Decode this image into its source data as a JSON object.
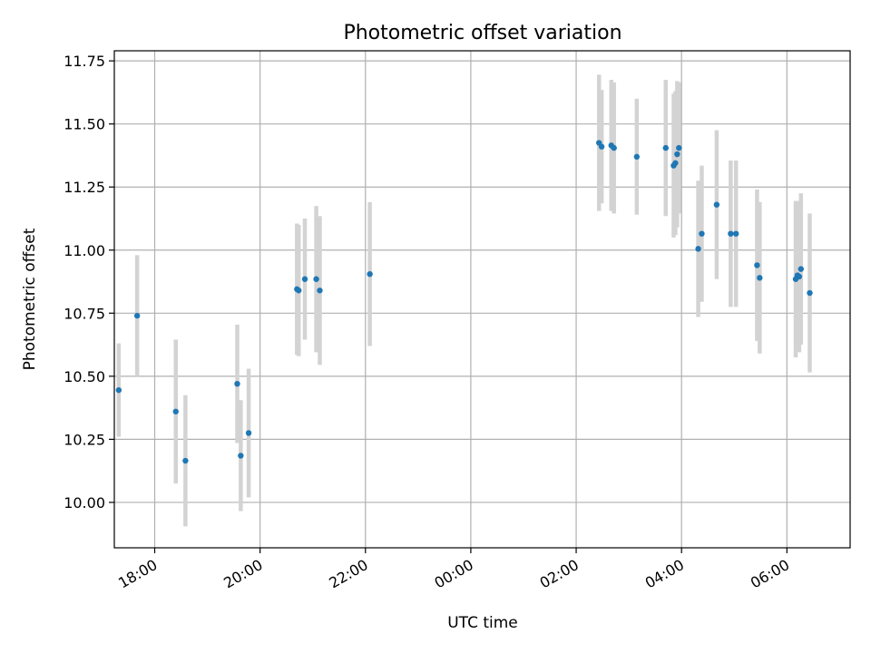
{
  "chart_data": {
    "type": "scatter",
    "title": "Photometric offset variation",
    "xlabel": "UTC time",
    "ylabel": "Photometric offset",
    "x_axis": "time-of-day, night spanning midnight",
    "xlim": [
      "17:14",
      "07:12"
    ],
    "ylim": [
      9.82,
      11.79
    ],
    "yticks": [
      10.0,
      10.25,
      10.5,
      10.75,
      11.0,
      11.25,
      11.5,
      11.75
    ],
    "xticks": [
      "18:00",
      "20:00",
      "22:00",
      "00:00",
      "02:00",
      "04:00",
      "06:00"
    ],
    "grid": true,
    "colors": {
      "point": "#1f77b4",
      "errorbar": "#d3d3d3",
      "grid": "#b0b0b0"
    },
    "points": [
      {
        "t": "17:19",
        "y": 10.445,
        "err": 0.185
      },
      {
        "t": "17:40",
        "y": 10.74,
        "err": 0.24
      },
      {
        "t": "18:24",
        "y": 10.36,
        "err": 0.285
      },
      {
        "t": "18:35",
        "y": 10.165,
        "err": 0.26
      },
      {
        "t": "19:34",
        "y": 10.47,
        "err": 0.235
      },
      {
        "t": "19:38",
        "y": 10.185,
        "err": 0.22
      },
      {
        "t": "19:47",
        "y": 10.275,
        "err": 0.255
      },
      {
        "t": "20:42",
        "y": 10.845,
        "err": 0.26
      },
      {
        "t": "20:44",
        "y": 10.84,
        "err": 0.26
      },
      {
        "t": "20:51",
        "y": 10.885,
        "err": 0.24
      },
      {
        "t": "21:04",
        "y": 10.885,
        "err": 0.29
      },
      {
        "t": "21:08",
        "y": 10.84,
        "err": 0.295
      },
      {
        "t": "22:05",
        "y": 10.905,
        "err": 0.285
      },
      {
        "t": "02:26",
        "y": 11.425,
        "err": 0.27
      },
      {
        "t": "02:29",
        "y": 11.41,
        "err": 0.225
      },
      {
        "t": "02:40",
        "y": 11.415,
        "err": 0.26
      },
      {
        "t": "02:43",
        "y": 11.405,
        "err": 0.26
      },
      {
        "t": "03:09",
        "y": 11.37,
        "err": 0.23
      },
      {
        "t": "03:42",
        "y": 11.405,
        "err": 0.27
      },
      {
        "t": "03:51",
        "y": 11.335,
        "err": 0.285
      },
      {
        "t": "03:53",
        "y": 11.345,
        "err": 0.285
      },
      {
        "t": "03:55",
        "y": 11.38,
        "err": 0.29
      },
      {
        "t": "03:57",
        "y": 11.405,
        "err": 0.26
      },
      {
        "t": "04:19",
        "y": 11.005,
        "err": 0.27
      },
      {
        "t": "04:23",
        "y": 11.065,
        "err": 0.27
      },
      {
        "t": "04:40",
        "y": 11.18,
        "err": 0.295
      },
      {
        "t": "04:56",
        "y": 11.065,
        "err": 0.29
      },
      {
        "t": "05:02",
        "y": 11.065,
        "err": 0.29
      },
      {
        "t": "05:26",
        "y": 10.94,
        "err": 0.3
      },
      {
        "t": "05:29",
        "y": 10.89,
        "err": 0.3
      },
      {
        "t": "06:10",
        "y": 10.885,
        "err": 0.31
      },
      {
        "t": "06:12",
        "y": 10.9,
        "err": 0.295
      },
      {
        "t": "06:14",
        "y": 10.895,
        "err": 0.3
      },
      {
        "t": "06:16",
        "y": 10.925,
        "err": 0.3
      },
      {
        "t": "06:26",
        "y": 10.83,
        "err": 0.315
      }
    ]
  }
}
